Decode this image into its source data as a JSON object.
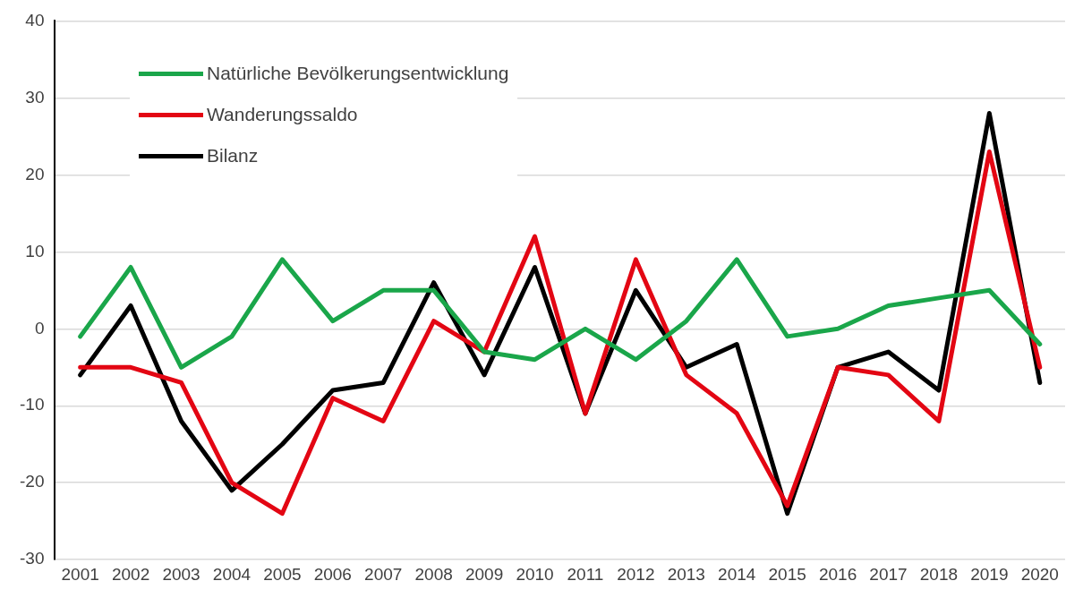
{
  "chart_data": {
    "type": "line",
    "categories": [
      "2001",
      "2002",
      "2003",
      "2004",
      "2005",
      "2006",
      "2007",
      "2008",
      "2009",
      "2010",
      "2011",
      "2012",
      "2013",
      "2014",
      "2015",
      "2016",
      "2017",
      "2018",
      "2019",
      "2020"
    ],
    "series": [
      {
        "name": "Natürliche Bevölkerungsentwicklung",
        "color": "#1aa64a",
        "values": [
          -1,
          8,
          -5,
          -1,
          9,
          1,
          5,
          5,
          -3,
          -4,
          0,
          -4,
          1,
          9,
          -1,
          0,
          3,
          4,
          5,
          -2
        ]
      },
      {
        "name": "Wanderungssaldo",
        "color": "#e30613",
        "values": [
          -5,
          -5,
          -7,
          -20,
          -24,
          -9,
          -12,
          1,
          -3,
          12,
          -11,
          9,
          -6,
          -11,
          -23,
          -5,
          -6,
          -12,
          23,
          -5
        ]
      },
      {
        "name": "Bilanz",
        "color": "#000000",
        "values": [
          -6,
          3,
          -12,
          -21,
          -15,
          -8,
          -7,
          6,
          -6,
          8,
          -11,
          5,
          -5,
          -2,
          -24,
          -5,
          -3,
          -8,
          28,
          -7
        ]
      }
    ],
    "ylim": [
      -30,
      40
    ],
    "yticks": [
      -30,
      -20,
      -10,
      0,
      10,
      20,
      30,
      40
    ],
    "grid": "y",
    "legend": "top left",
    "marker": "none",
    "line_style": "solid"
  }
}
